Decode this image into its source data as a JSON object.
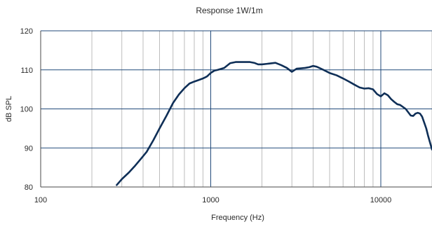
{
  "chart_data": {
    "type": "line",
    "title": "Response 1W/1m",
    "xlabel": "Frequency (Hz)",
    "ylabel": "dB SPL",
    "x_scale": "log",
    "xlim": [
      100,
      20000
    ],
    "ylim": [
      80,
      120
    ],
    "x_tick_labels": [
      "100",
      "1000",
      "10000"
    ],
    "x_tick_values": [
      100,
      1000,
      10000
    ],
    "y_tick_labels": [
      "120",
      "110",
      "100",
      "90",
      "80"
    ],
    "y_tick_values": [
      120,
      110,
      100,
      90,
      80
    ],
    "grid": true,
    "legend": "none",
    "colors": {
      "curve": "#0f2f57",
      "major_grid": "#214a7a",
      "minor_grid": "#bdbdbd",
      "axis": "#4a4a4a"
    },
    "series": [
      {
        "x": [
          280,
          300,
          330,
          360,
          390,
          420,
          460,
          500,
          550,
          600,
          650,
          700,
          750,
          800,
          850,
          900,
          950,
          1000,
          1050,
          1100,
          1200,
          1300,
          1400,
          1500,
          1600,
          1700,
          1800,
          1900,
          2000,
          2200,
          2400,
          2600,
          2800,
          3000,
          3200,
          3400,
          3600,
          3800,
          4000,
          4200,
          4500,
          5000,
          5500,
          6000,
          6500,
          7000,
          7500,
          8000,
          8500,
          9000,
          9500,
          10000,
          10500,
          11000,
          11500,
          12000,
          12500,
          13000,
          14000,
          15000,
          15500,
          16000,
          16500,
          17000,
          17500,
          18000,
          18500,
          19000,
          20000
        ],
        "y": [
          80.5,
          82.0,
          83.7,
          85.5,
          87.3,
          89.0,
          92.0,
          95.0,
          98.3,
          101.5,
          103.7,
          105.3,
          106.5,
          107.0,
          107.4,
          107.8,
          108.3,
          109.2,
          109.8,
          110.0,
          110.5,
          111.7,
          112.0,
          112.0,
          112.0,
          112.0,
          111.8,
          111.4,
          111.4,
          111.6,
          111.8,
          111.2,
          110.5,
          109.5,
          110.3,
          110.4,
          110.5,
          110.7,
          111.0,
          110.8,
          110.2,
          109.2,
          108.6,
          107.8,
          107.0,
          106.2,
          105.5,
          105.2,
          105.3,
          105.0,
          103.8,
          103.2,
          104.0,
          103.5,
          102.5,
          101.8,
          101.2,
          101.0,
          100.0,
          98.3,
          98.2,
          98.8,
          99.0,
          98.8,
          98.0,
          96.5,
          95.0,
          93.0,
          89.6
        ]
      }
    ]
  }
}
